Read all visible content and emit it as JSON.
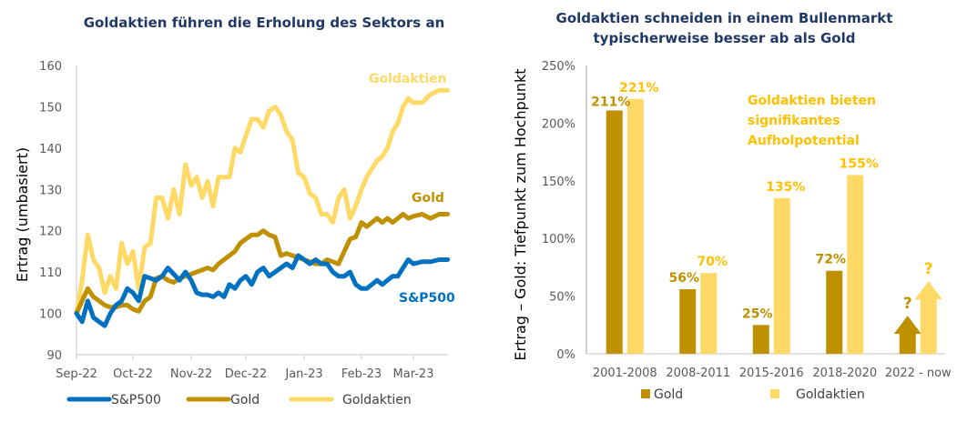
{
  "chart_data": [
    {
      "type": "line",
      "title": "Goldaktien führen die Erholung des Sektors an",
      "xlabel": "",
      "ylabel": "Ertrag (umbasiert)",
      "ylim": [
        90,
        160
      ],
      "yticks": [
        90,
        100,
        110,
        120,
        130,
        140,
        150,
        160
      ],
      "xticks": [
        "Sep-22",
        "Oct-22",
        "Nov-22",
        "Dec-22",
        "Jan-23",
        "Feb-23",
        "Mar-23"
      ],
      "grid": false,
      "legend": "bottom",
      "x_unit": "months since Sep-22 (0 = Sep-22, 6 = Mar-23)",
      "series": [
        {
          "name": "S&P500",
          "color": "#0070c0",
          "end_label": "S&P500",
          "x": [
            0,
            0.1,
            0.2,
            0.3,
            0.4,
            0.5,
            0.6,
            0.7,
            0.8,
            0.9,
            1.0,
            1.1,
            1.2,
            1.3,
            1.4,
            1.5,
            1.6,
            1.7,
            1.8,
            1.9,
            2.0,
            2.1,
            2.2,
            2.3,
            2.4,
            2.5,
            2.6,
            2.7,
            2.8,
            2.9,
            3.0,
            3.1,
            3.2,
            3.3,
            3.4,
            3.5,
            3.6,
            3.7,
            3.8,
            3.9,
            4.0,
            4.1,
            4.2,
            4.3,
            4.4,
            4.5,
            4.6,
            4.7,
            4.8,
            4.9,
            5.0,
            5.1,
            5.2,
            5.3,
            5.4,
            5.5,
            5.6,
            5.7,
            5.8,
            5.9,
            6.0,
            6.1,
            6.2,
            6.3,
            6.4
          ],
          "values": [
            100,
            98,
            103,
            99,
            98,
            97,
            100,
            102,
            103,
            106,
            105,
            103,
            109,
            108.5,
            108,
            109,
            111,
            109.5,
            108,
            110,
            108,
            105,
            104.5,
            104.5,
            104,
            105,
            104,
            107,
            106,
            108,
            109,
            107,
            110,
            111,
            109,
            110,
            111,
            112,
            111,
            114,
            113,
            112,
            113,
            112,
            112,
            110,
            109,
            109,
            110,
            107,
            106,
            106,
            107,
            108,
            107,
            108,
            109,
            109,
            111,
            113,
            112,
            112.5,
            112.5,
            113,
            113
          ]
        },
        {
          "name": "Gold",
          "color": "#bf9000",
          "end_label": "Gold",
          "x": [
            0,
            0.1,
            0.2,
            0.3,
            0.4,
            0.5,
            0.6,
            0.7,
            0.8,
            0.9,
            1.0,
            1.1,
            1.2,
            1.3,
            1.4,
            1.5,
            1.6,
            1.7,
            1.8,
            1.9,
            2.0,
            2.1,
            2.2,
            2.3,
            2.4,
            2.5,
            2.6,
            2.7,
            2.8,
            2.9,
            3.0,
            3.1,
            3.2,
            3.3,
            3.4,
            3.5,
            3.6,
            3.7,
            3.8,
            3.9,
            4.0,
            4.1,
            4.2,
            4.3,
            4.4,
            4.5,
            4.6,
            4.7,
            4.8,
            4.9,
            5.0,
            5.1,
            5.2,
            5.3,
            5.4,
            5.5,
            5.6,
            5.7,
            5.8,
            5.9,
            6.0,
            6.1,
            6.2,
            6.3,
            6.4
          ],
          "values": [
            100,
            103,
            106,
            104,
            103,
            102,
            101.5,
            101.5,
            102,
            102,
            101,
            100.5,
            103,
            104,
            108.5,
            109,
            108,
            107.5,
            108.5,
            109,
            109.5,
            110,
            110.5,
            111,
            110.5,
            112,
            113,
            114,
            115,
            117,
            118,
            119,
            119,
            120,
            119,
            118.5,
            114,
            114.5,
            114,
            113.5,
            113,
            112.5,
            112,
            112,
            113,
            112.5,
            112,
            115,
            118,
            118.5,
            122,
            121,
            122,
            123,
            122,
            123,
            122,
            123,
            124,
            123,
            123.5,
            124,
            123,
            124,
            124
          ]
        },
        {
          "name": "Goldaktien",
          "color": "#ffd966",
          "end_label": "Goldaktien",
          "x": [
            0,
            0.1,
            0.2,
            0.3,
            0.4,
            0.5,
            0.6,
            0.7,
            0.8,
            0.9,
            1.0,
            1.1,
            1.2,
            1.3,
            1.4,
            1.5,
            1.6,
            1.7,
            1.8,
            1.9,
            2.0,
            2.1,
            2.2,
            2.3,
            2.4,
            2.5,
            2.6,
            2.7,
            2.8,
            2.9,
            3.0,
            3.1,
            3.2,
            3.3,
            3.4,
            3.5,
            3.6,
            3.7,
            3.8,
            3.9,
            4.0,
            4.1,
            4.2,
            4.3,
            4.4,
            4.5,
            4.6,
            4.7,
            4.8,
            4.9,
            5.0,
            5.1,
            5.2,
            5.3,
            5.4,
            5.5,
            5.6,
            5.7,
            5.8,
            5.9,
            6.0,
            6.1,
            6.2,
            6.3,
            6.4
          ],
          "values": [
            100,
            108,
            119,
            113,
            111,
            105,
            109,
            106,
            117,
            112,
            115,
            106,
            116,
            117,
            128,
            128,
            123,
            130,
            124,
            136,
            131,
            133,
            128,
            132,
            126,
            133,
            133,
            133,
            140,
            139,
            143,
            147,
            147,
            145,
            149,
            150,
            148,
            144,
            142,
            134,
            133,
            129,
            128,
            124,
            124,
            122,
            128,
            130,
            123,
            126,
            130,
            133,
            135,
            137,
            138,
            140,
            144,
            146,
            150,
            152,
            151,
            151,
            153,
            154,
            154
          ]
        }
      ]
    },
    {
      "type": "bar",
      "title": "Goldaktien schneiden in einem Bullenmarkt typischerweise besser ab als Gold",
      "title_lines": [
        "Goldaktien schneiden in einem Bullenmarkt",
        "typischerweise besser ab als Gold"
      ],
      "xlabel": "",
      "ylabel": "Ertrag – Gold: Tiefpunkt zum Hochpunkt",
      "ylim": [
        0,
        250
      ],
      "yticks": [
        "0%",
        "50%",
        "100%",
        "150%",
        "200%",
        "250%"
      ],
      "categories": [
        "2001-2008",
        "2008-2011",
        "2015-2016",
        "2018-2020",
        "2022 - now"
      ],
      "grid": false,
      "legend": "bottom",
      "series": [
        {
          "name": "Gold",
          "color": "#bf9000",
          "values": [
            211,
            56,
            25,
            72,
            null
          ],
          "labels": [
            "211%",
            "56%",
            "25%",
            "72%",
            "?"
          ]
        },
        {
          "name": "Goldaktien",
          "color": "#ffd966",
          "label_color": "#ffc000",
          "values": [
            221,
            70,
            135,
            155,
            null
          ],
          "labels": [
            "221%",
            "70%",
            "135%",
            "155%",
            "?"
          ]
        }
      ],
      "last_category_arrows": {
        "Gold_arrow_top_pct": 33,
        "Goldaktien_arrow_top_pct": 63
      },
      "annotation": {
        "lines": [
          "Goldaktien bieten",
          "signifikantes",
          "Aufholpotential"
        ],
        "color": "#ffc000"
      }
    }
  ]
}
